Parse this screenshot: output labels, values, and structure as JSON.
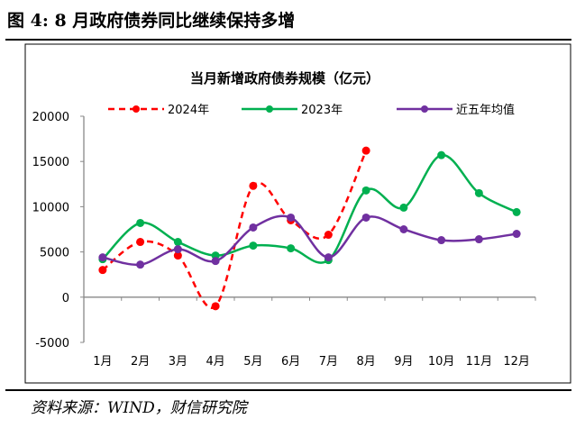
{
  "figure_title": "图 4:  8 月政府债券同比继续保持多增",
  "source": "资料来源：WIND，财信研究院",
  "chart_data": {
    "type": "line",
    "title": "当月新增政府债券规模（亿元）",
    "categories": [
      "1月",
      "2月",
      "3月",
      "4月",
      "5月",
      "6月",
      "7月",
      "8月",
      "9月",
      "10月",
      "11月",
      "12月"
    ],
    "ylim": [
      -5000,
      20000
    ],
    "yticks": [
      -5000,
      0,
      5000,
      10000,
      15000,
      20000
    ],
    "grid": false,
    "legend": "top",
    "series": [
      {
        "name": "2024年",
        "color": "#FF0000",
        "dashed": true,
        "values": [
          3000,
          6100,
          4600,
          -1000,
          12300,
          8500,
          6900,
          16200,
          null,
          null,
          null,
          null
        ]
      },
      {
        "name": "2023年",
        "color": "#00B050",
        "dashed": false,
        "values": [
          4200,
          8200,
          6100,
          4600,
          5700,
          5400,
          4100,
          11800,
          9900,
          15700,
          11500,
          9400
        ]
      },
      {
        "name": "近五年均值",
        "color": "#7030A0",
        "dashed": false,
        "values": [
          4400,
          3600,
          5300,
          4000,
          7700,
          8800,
          4400,
          8800,
          7500,
          6300,
          6400,
          7000
        ]
      }
    ]
  }
}
